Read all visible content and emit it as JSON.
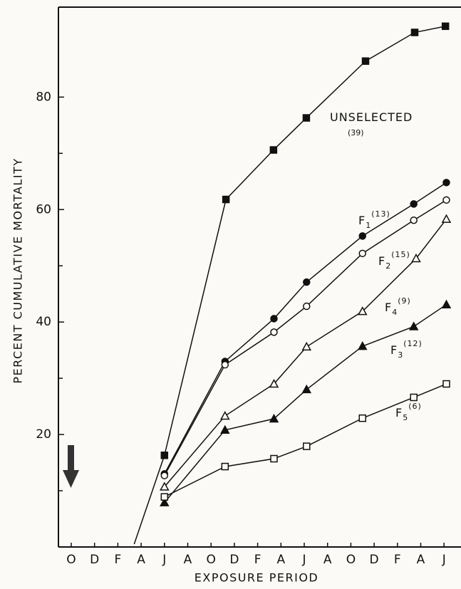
{
  "chart_data": {
    "type": "line",
    "y_label": "PERCENT CUMULATIVE MORTALITY",
    "x_label": "EXPOSURE PERIOD",
    "xlim": [
      -0.55,
      16.7
    ],
    "xticks": [
      {
        "value": 0,
        "label": "O"
      },
      {
        "value": 1,
        "label": "D"
      },
      {
        "value": 2,
        "label": "F"
      },
      {
        "value": 3,
        "label": "A"
      },
      {
        "value": 4,
        "label": "J"
      },
      {
        "value": 5,
        "label": "A"
      },
      {
        "value": 6,
        "label": "O"
      },
      {
        "value": 7,
        "label": "D"
      },
      {
        "value": 8,
        "label": "F"
      },
      {
        "value": 9,
        "label": "A"
      },
      {
        "value": 10,
        "label": "J"
      },
      {
        "value": 11,
        "label": "A"
      },
      {
        "value": 12,
        "label": "O"
      },
      {
        "value": 13,
        "label": "D"
      },
      {
        "value": 14,
        "label": "F"
      },
      {
        "value": 15,
        "label": "A"
      },
      {
        "value": 16,
        "label": "J"
      }
    ],
    "ylim": [
      0,
      96
    ],
    "yticks": [
      20,
      40,
      60,
      80
    ],
    "yminorticks": [
      10,
      30,
      50,
      70
    ],
    "series": [
      {
        "name": "UNSELECTED",
        "note": "(39)",
        "marker": "filled-square",
        "color": "#111111",
        "x": [
          2.7,
          4.0,
          6.64,
          8.68,
          10.09,
          12.63,
          14.74,
          16.06
        ],
        "values": [
          0.5,
          16.3,
          61.8,
          70.6,
          76.3,
          86.4,
          91.5,
          92.6
        ]
      },
      {
        "name": "F",
        "subscript": "1",
        "superscript": "(13)",
        "marker": "filled-circle",
        "color": "#111111",
        "x": [
          4.0,
          6.6,
          8.7,
          10.1,
          12.5,
          14.7,
          16.1
        ],
        "values": [
          13,
          33,
          40.6,
          47.1,
          55.3,
          61,
          64.8
        ]
      },
      {
        "name": "F",
        "subscript": "2",
        "superscript": "(15)",
        "marker": "open-circle",
        "color": "#111111",
        "x": [
          4.0,
          6.6,
          8.7,
          10.1,
          12.5,
          14.7,
          16.1
        ],
        "values": [
          12.7,
          32.4,
          38.2,
          42.8,
          52.2,
          58.1,
          61.7
        ]
      },
      {
        "name": "F",
        "subscript": "4",
        "superscript": "(9)",
        "marker": "open-triangle",
        "color": "#111111",
        "x": [
          4.0,
          6.6,
          8.7,
          10.1,
          12.5,
          14.8,
          16.1
        ],
        "values": [
          10.7,
          23.3,
          29,
          35.6,
          41.9,
          51.3,
          58.3
        ]
      },
      {
        "name": "F",
        "subscript": "3",
        "superscript": "(12)",
        "marker": "filled-triangle",
        "color": "#111111",
        "x": [
          4.0,
          6.6,
          8.7,
          10.1,
          12.5,
          14.7,
          16.1
        ],
        "values": [
          7.9,
          20.8,
          22.8,
          28,
          35.7,
          39.2,
          43.1
        ]
      },
      {
        "name": "F",
        "subscript": "5",
        "superscript": "(6)",
        "marker": "open-square",
        "color": "#111111",
        "x": [
          4.0,
          6.6,
          8.7,
          10.1,
          12.5,
          14.7,
          16.1
        ],
        "values": [
          8.9,
          14.3,
          15.7,
          17.9,
          22.9,
          26.6,
          29
        ]
      }
    ]
  }
}
